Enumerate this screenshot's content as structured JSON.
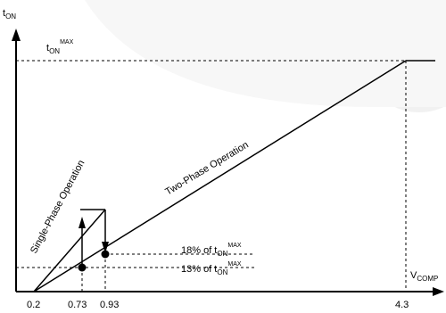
{
  "y_axis": {
    "main": "t",
    "sub": "ON"
  },
  "x_axis": {
    "main": "V",
    "sub": "COMP"
  },
  "max_label": {
    "main": "t",
    "sub": "ON",
    "sup": "MAX"
  },
  "curves": {
    "single_phase": "Single-Phase Operation",
    "two_phase": "Two-Phase Operation"
  },
  "thresholds": {
    "upper": {
      "prefix": "18% of t",
      "sub": "ON",
      "sup": "MAX"
    },
    "lower": {
      "prefix": "13% of t",
      "sub": "ON",
      "sup": "MAX"
    }
  },
  "x_ticks": [
    "0.2",
    "0.73",
    "0.93",
    "4.3"
  ],
  "colors": {
    "ink": "#000000",
    "watermark": "#f1f1f1"
  }
}
